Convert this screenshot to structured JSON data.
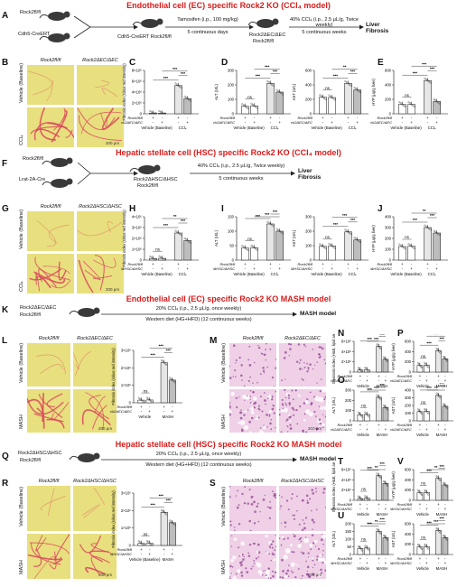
{
  "sections": {
    "s1": "Endothelial cell (EC) specific Rock2 KO (CCl₄ model)",
    "s2": "Hepatic stellate cell (HSC) specific Rock2 KO (CCl₄ model)",
    "s3": "Endothelial cell (EC) specific Rock2 KO MASH model",
    "s4": "Hepatic stellate cell (HSC) specific Rock2 KO MASH model"
  },
  "panels": {
    "A": {
      "mouse1": "Rock2fl/fl",
      "mouse2": "Cdh5-CreERT",
      "cross": "Cdh5-CreERT Rock2fl/fl",
      "step1": "Tamoxifen (i.p., 100 mg/kg)",
      "step1b": "5 continuous days",
      "ko": "Rock2ΔEC/ΔEC",
      "ctrl": "Rock2fl/fl",
      "step2": "40% CCl₄ (i.p., 2.5 μL/g, Twice weekly)",
      "step2b": "5 continuous weeks",
      "dest": "Liver Fibrosis"
    },
    "F": {
      "mouse1": "Rock2fl/fl",
      "mouse2": "Lrat-2A-Cre",
      "ko": "Rock2ΔHSC/ΔHSC",
      "ctrl": "Rock2fl/fl",
      "step": "40% CCl₄ (i.p., 2.5 μL/g, Twice weekly)",
      "stepb": "5 continuous weeks",
      "dest": "Liver Fibrosis"
    },
    "K": {
      "mouse1": "Rock2ΔEC/ΔEC",
      "mouse2": "Rock2fl/fl",
      "step": "20% CCl₄ (i.p., 2.5 μL/g, once weekly)",
      "stepb": "Western diet (HG+HFD) (12 continuous weeks)",
      "dest": "MASH model"
    },
    "Q": {
      "mouse1": "Rock2ΔHSC/ΔHSC",
      "mouse2": "Rock2fl/fl",
      "step": "20% CCl₄ (i.p., 2.5 μL/g, once weekly)",
      "stepb": "Western diet (HG+HFD) (12 continuous weeks)",
      "dest": "MASH model"
    }
  },
  "image_grids": {
    "B": {
      "cols": [
        "Rock2fl/fl",
        "Rock2ΔEC/ΔEC"
      ],
      "rows": [
        "Vehicle (Baseline)",
        "CCl₄"
      ],
      "scale": "200 μm"
    },
    "G": {
      "cols": [
        "Rock2fl/fl",
        "Rock2ΔHSC/ΔHSC"
      ],
      "rows": [
        "Vehicle (Baseline)",
        "CCl₄"
      ],
      "scale": "200 μm"
    },
    "L": {
      "cols": [
        "Rock2fl/fl",
        "Rock2ΔEC/ΔEC"
      ],
      "rows": [
        "Vehicle (Baseline)",
        "MASH"
      ],
      "scale": "200 μm"
    },
    "M": {
      "cols": [
        "Rock2fl/fl",
        "Rock2ΔEC/ΔEC"
      ],
      "rows": [
        "Vehicle (Baseline)",
        "MASH"
      ],
      "scale": "200 μm"
    },
    "R": {
      "cols": [
        "Rock2fl/fl",
        "Rock2ΔHSC/ΔHSC"
      ],
      "rows": [
        "Vehicle (Baseline)",
        "MASH"
      ],
      "scale": "200 μm"
    },
    "S": {
      "cols": [
        "Rock2fl/fl",
        "Rock2ΔHSC/ΔHSC"
      ],
      "rows": [
        "Vehicle (Baseline)",
        "MASH"
      ],
      "scale": "200 μm"
    }
  },
  "colors": {
    "accent_red": "#d81b1b",
    "sirius_bg": "#e8df7e",
    "sirius_fiber": "#d9465c",
    "he_bg": "#efd0e6",
    "he_nuclei": "#8a3b8f"
  },
  "chart_data": [
    {
      "panel": "C",
      "type": "bar",
      "ylabel": "Fibrosis index (sirius red intensity)",
      "yticks": [
        "0",
        "2×10⁶",
        "4×10⁶",
        "6×10⁶",
        "8×10⁶"
      ],
      "ylim": [
        0,
        8000000
      ],
      "values": [
        120000,
        110000,
        5200000,
        2800000
      ],
      "groups": [
        "Vehicle (Baseline)",
        "CCl₄"
      ],
      "sig": [
        "***",
        "***",
        "***"
      ]
    },
    {
      "panel": "D1",
      "type": "bar",
      "ylabel": "ALT (U/L)",
      "yticks": [
        "0",
        "100",
        "200",
        "300"
      ],
      "ylim": [
        0,
        300
      ],
      "values": [
        52,
        55,
        210,
        150
      ],
      "groups": [
        "Vehicle (Baseline)",
        "CCl₄"
      ],
      "sig": [
        "***",
        "***",
        "***",
        "ns"
      ]
    },
    {
      "panel": "D2",
      "type": "bar",
      "ylabel": "AST (U/L)",
      "yticks": [
        "0",
        "200",
        "400",
        "600"
      ],
      "ylim": [
        0,
        600
      ],
      "values": [
        230,
        225,
        420,
        330
      ],
      "groups": [
        "Vehicle (Baseline)",
        "CCl₄"
      ],
      "sig": [
        "***",
        "***",
        "**",
        "ns"
      ]
    },
    {
      "panel": "E",
      "type": "bar",
      "ylabel": "HYP (μg/g liver)",
      "yticks": [
        "0",
        "200",
        "400",
        "600"
      ],
      "ylim": [
        0,
        600
      ],
      "values": [
        130,
        130,
        460,
        170
      ],
      "groups": [
        "Vehicle (Baseline)",
        "CCl₄"
      ],
      "sig": [
        "***",
        "***",
        "***",
        "ns"
      ]
    },
    {
      "panel": "H",
      "type": "bar",
      "ylabel": "Fibrosis index (sirius red intensity)",
      "yticks": [
        "0",
        "1×10⁶",
        "2×10⁶",
        "3×10⁶",
        "4×10⁶"
      ],
      "ylim": [
        0,
        4000000
      ],
      "values": [
        150000,
        160000,
        2500000,
        1800000
      ],
      "groups": [
        "Vehicle (Baseline)",
        "CCl₄"
      ],
      "sig": [
        "***",
        "***",
        "**",
        "ns"
      ]
    },
    {
      "panel": "I1",
      "type": "bar",
      "ylabel": "ALT (U/L)",
      "yticks": [
        "0",
        "50",
        "100",
        "150"
      ],
      "ylim": [
        0,
        150
      ],
      "values": [
        42,
        43,
        125,
        100
      ],
      "groups": [
        "Vehicle (Baseline)",
        "CCl₄"
      ],
      "sig": [
        "***",
        "***",
        "***",
        "ns"
      ]
    },
    {
      "panel": "I2",
      "type": "bar",
      "ylabel": "AST (U/L)",
      "yticks": [
        "0",
        "100",
        "200",
        "300"
      ],
      "ylim": [
        0,
        300
      ],
      "values": [
        95,
        98,
        195,
        140
      ],
      "groups": [
        "Vehicle (Baseline)",
        "CCl₄"
      ],
      "sig": [
        "***",
        "***",
        "***",
        "ns"
      ]
    },
    {
      "panel": "J",
      "type": "bar",
      "ylabel": "HYP (μg/g liver)",
      "yticks": [
        "0",
        "100",
        "200",
        "300",
        "400"
      ],
      "ylim": [
        0,
        400
      ],
      "values": [
        125,
        128,
        300,
        250
      ],
      "groups": [
        "Vehicle (Baseline)",
        "CCl₄"
      ],
      "sig": [
        "***",
        "***",
        "**",
        "ns"
      ]
    },
    {
      "panel": "L",
      "type": "bar",
      "ylabel": "Fibrosis index (sirius red intensity)",
      "yticks": [
        "0",
        "1×10⁶",
        "2×10⁶",
        "3×10⁶"
      ],
      "ylim": [
        0,
        3000000
      ],
      "values": [
        150000,
        160000,
        2300000,
        1300000
      ],
      "groups": [
        "Vehicle",
        "MASH"
      ],
      "sig": [
        "***",
        "***",
        "***",
        "ns"
      ]
    },
    {
      "panel": "N",
      "type": "bar",
      "ylabel": "Steatosis index (H&E, lipid area)",
      "yticks": [
        "0",
        "2×10⁶",
        "4×10⁶",
        "6×10⁶"
      ],
      "ylim": [
        0,
        6000000
      ],
      "values": [
        400000,
        450000,
        5000000,
        2500000
      ],
      "groups": [
        "Vehicle",
        "MASH"
      ],
      "sig": [
        "***",
        "***",
        "***"
      ]
    },
    {
      "panel": "O1",
      "type": "bar",
      "ylabel": "ALT (U/L)",
      "yticks": [
        "0",
        "100",
        "200",
        "300"
      ],
      "ylim": [
        0,
        300
      ],
      "values": [
        60,
        62,
        230,
        130
      ],
      "groups": [
        "Vehicle",
        "MASH"
      ],
      "sig": [
        "***",
        "***",
        "***",
        "ns"
      ]
    },
    {
      "panel": "P1",
      "type": "bar",
      "ylabel": "HYP (μg/g liver)",
      "yticks": [
        "0",
        "200",
        "400",
        "600"
      ],
      "ylim": [
        0,
        600
      ],
      "values": [
        130,
        135,
        420,
        260
      ],
      "groups": [
        "Vehicle",
        "MASH"
      ],
      "sig": [
        "***",
        "***",
        "***",
        "ns"
      ]
    },
    {
      "panel": "P2",
      "type": "bar",
      "ylabel": "AST (U/L)",
      "yticks": [
        "0",
        "100",
        "200",
        "300",
        "400"
      ],
      "ylim": [
        0,
        400
      ],
      "values": [
        120,
        125,
        330,
        190
      ],
      "groups": [
        "Vehicle",
        "MASH"
      ],
      "sig": [
        "***",
        "***",
        "**",
        "ns"
      ]
    },
    {
      "panel": "R",
      "type": "bar",
      "ylabel": "Fibrosis index (sirius red intensity)",
      "yticks": [
        "0",
        "1×10⁶",
        "2×10⁶",
        "3×10⁶"
      ],
      "ylim": [
        0,
        3000000
      ],
      "values": [
        120000,
        130000,
        1900000,
        1300000
      ],
      "groups": [
        "Vehicle (Baseline)",
        "MASH"
      ],
      "sig": [
        "***",
        "***",
        "***",
        "ns"
      ]
    },
    {
      "panel": "T",
      "type": "bar",
      "ylabel": "Steatosis index (H&E, lipid area)",
      "yticks": [
        "0",
        "2×10⁶",
        "4×10⁶",
        "6×10⁶"
      ],
      "ylim": [
        0,
        6000000
      ],
      "values": [
        350000,
        400000,
        4800000,
        3300000
      ],
      "groups": [
        "Vehicle",
        "MASH"
      ],
      "sig": [
        "***",
        "***",
        "**",
        "ns"
      ]
    },
    {
      "panel": "U1",
      "type": "bar",
      "ylabel": "ALT (U/L)",
      "yticks": [
        "0",
        "50",
        "100",
        "150",
        "200"
      ],
      "ylim": [
        0,
        200
      ],
      "values": [
        40,
        42,
        150,
        110
      ],
      "groups": [
        "Vehicle",
        "MASH"
      ],
      "sig": [
        "***",
        "***",
        "**",
        "ns"
      ]
    },
    {
      "panel": "V",
      "type": "bar",
      "ylabel": "HYP (μg/g liver)",
      "yticks": [
        "0",
        "200",
        "400",
        "600"
      ],
      "ylim": [
        0,
        600
      ],
      "values": [
        150,
        155,
        430,
        300
      ],
      "groups": [
        "Vehicle",
        "MASH"
      ],
      "sig": [
        "***",
        "***",
        "**",
        "ns"
      ]
    },
    {
      "panel": "U2",
      "type": "bar",
      "ylabel": "AST (U/L)",
      "yticks": [
        "0",
        "200",
        "400",
        "600"
      ],
      "ylim": [
        0,
        600
      ],
      "values": [
        150,
        155,
        470,
        330
      ],
      "groups": [
        "Vehicle",
        "MASH"
      ],
      "sig": [
        "***",
        "***",
        "***",
        "ns"
      ]
    }
  ],
  "genotype_rows": {
    "row1": "Rock2fl/fl",
    "row2_ec": "Rock2ΔEC/ΔEC",
    "row2_hsc": "Rock2ΔHSC/ΔHSC",
    "plus": "+",
    "minus": "-"
  }
}
